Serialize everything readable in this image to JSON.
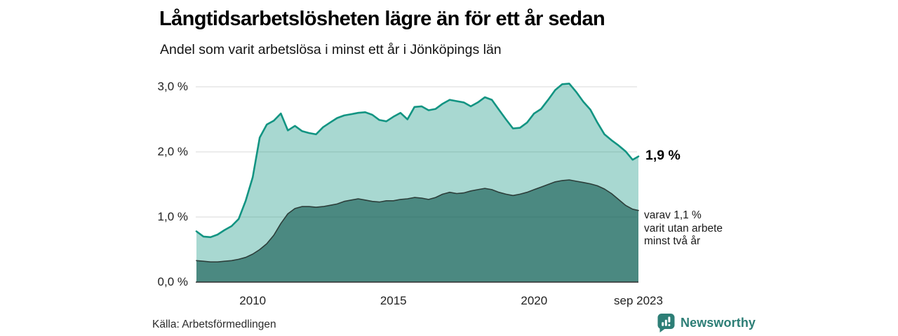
{
  "chart_data": {
    "type": "area",
    "title": "Långtidsarbetslösheten lägre än för ett år sedan",
    "subtitle": "Andel som varit arbetslösa i minst ett år i Jönköpings län",
    "region": "Jönköpings län",
    "grid": "horizontal",
    "legend": "none",
    "ylim": [
      0,
      3.2
    ],
    "y_ticks": [
      {
        "label": "0,0 %",
        "value": 0
      },
      {
        "label": "1,0 %",
        "value": 1
      },
      {
        "label": "2,0 %",
        "value": 2
      },
      {
        "label": "3,0 %",
        "value": 3
      }
    ],
    "x_ticks": [
      {
        "label": "2010",
        "year": 2010
      },
      {
        "label": "2015",
        "year": 2015
      },
      {
        "label": "2020",
        "year": 2020
      },
      {
        "label": "sep 2023",
        "year": 2023.708
      }
    ],
    "x_years": [
      2008,
      2008.25,
      2008.5,
      2008.75,
      2009,
      2009.25,
      2009.5,
      2009.75,
      2010,
      2010.25,
      2010.5,
      2010.75,
      2011,
      2011.25,
      2011.5,
      2011.75,
      2012,
      2012.25,
      2012.5,
      2012.75,
      2013,
      2013.25,
      2013.5,
      2013.75,
      2014,
      2014.25,
      2014.5,
      2014.75,
      2015,
      2015.25,
      2015.5,
      2015.75,
      2016,
      2016.25,
      2016.5,
      2016.75,
      2017,
      2017.25,
      2017.5,
      2017.75,
      2018,
      2018.25,
      2018.5,
      2018.75,
      2019,
      2019.25,
      2019.5,
      2019.75,
      2020,
      2020.25,
      2020.5,
      2020.75,
      2021,
      2021.25,
      2021.5,
      2021.75,
      2022,
      2022.25,
      2022.5,
      2022.75,
      2023,
      2023.25,
      2023.5,
      2023.708
    ],
    "series": [
      {
        "name": "Andel arbetslösa minst ett år",
        "end_value_pct": 1.9,
        "values": [
          0.78,
          0.7,
          0.69,
          0.73,
          0.8,
          0.86,
          0.97,
          1.25,
          1.61,
          2.22,
          2.42,
          2.48,
          2.59,
          2.33,
          2.4,
          2.32,
          2.29,
          2.27,
          2.38,
          2.45,
          2.52,
          2.56,
          2.58,
          2.6,
          2.61,
          2.57,
          2.49,
          2.47,
          2.54,
          2.6,
          2.5,
          2.69,
          2.7,
          2.64,
          2.66,
          2.74,
          2.8,
          2.78,
          2.76,
          2.7,
          2.76,
          2.84,
          2.8,
          2.65,
          2.5,
          2.36,
          2.37,
          2.45,
          2.59,
          2.66,
          2.8,
          2.95,
          3.04,
          3.05,
          2.92,
          2.77,
          2.65,
          2.45,
          2.27,
          2.18,
          2.1,
          2.01,
          1.88,
          1.93
        ]
      },
      {
        "name": "varav arbetslösa minst två år",
        "end_value_pct": 1.1,
        "values": [
          0.33,
          0.32,
          0.31,
          0.31,
          0.32,
          0.33,
          0.35,
          0.38,
          0.43,
          0.5,
          0.59,
          0.72,
          0.9,
          1.05,
          1.13,
          1.16,
          1.16,
          1.15,
          1.16,
          1.18,
          1.2,
          1.24,
          1.26,
          1.28,
          1.26,
          1.24,
          1.23,
          1.25,
          1.25,
          1.27,
          1.28,
          1.3,
          1.29,
          1.27,
          1.3,
          1.35,
          1.38,
          1.36,
          1.37,
          1.4,
          1.42,
          1.44,
          1.42,
          1.38,
          1.35,
          1.33,
          1.35,
          1.38,
          1.42,
          1.46,
          1.5,
          1.54,
          1.56,
          1.57,
          1.55,
          1.53,
          1.51,
          1.48,
          1.43,
          1.36,
          1.27,
          1.18,
          1.12,
          1.1
        ]
      }
    ],
    "end_labels": {
      "total": "1,9 %",
      "sub_lines": [
        "varav 1,1 %",
        "varit utan arbete",
        "minst två år"
      ]
    },
    "colors": {
      "line_total": "#129482",
      "fill_total": "rgba(18,148,130,0.37)",
      "line_sub": "#2c3e3a",
      "fill_sub": "rgba(14,85,75,0.60)",
      "grid": "#d8d8d8",
      "axis": "#2e2e2e"
    }
  },
  "footer": {
    "source": "Källa: Arbetsförmedlingen",
    "brand": "Newsworthy",
    "brand_color": "#2d7e76"
  }
}
